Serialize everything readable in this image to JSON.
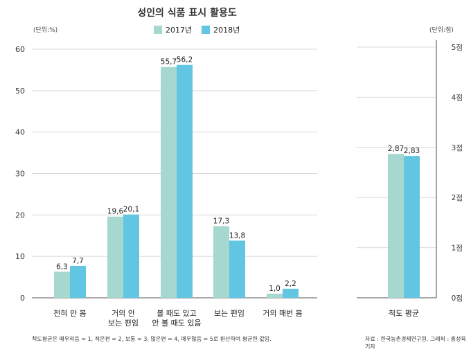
{
  "title": "성인의 식품 표시 활용도",
  "legend": {
    "series_1": "2017년",
    "series_2": "2018년",
    "color_1": "#a6d8d0",
    "color_2": "#62c5e2"
  },
  "left_unit": "(단위:%)",
  "right_unit": "(단위:점)",
  "footnote_left": "척도평균은 매우적음 = 1, 적은편 = 2, 보통 = 3, 많은편 = 4, 매우많음 = 5로 환산하여 평균한 값임.",
  "footnote_right": "자료 : 한국농촌경제연구원, 그래픽 : 홍성육 기자",
  "chart_data": [
    {
      "type": "bar",
      "title": "성인의 식품 표시 활용도",
      "ylabel": "(단위:%)",
      "ylim": [
        0,
        60
      ],
      "yticks": [
        "0",
        "10",
        "20",
        "30",
        "40",
        "50",
        "60"
      ],
      "categories": [
        [
          "전혀 안 봄"
        ],
        [
          "거의 안",
          "보는 편임"
        ],
        [
          "볼 때도 있고",
          "안 볼 때도 있음"
        ],
        [
          "보는 편임"
        ],
        [
          "거의 매번 봄"
        ]
      ],
      "series": [
        {
          "name": "2017년",
          "values": [
            6.3,
            19.6,
            55.7,
            17.3,
            1.0
          ],
          "labels": [
            "6,3",
            "19,6",
            "55,7",
            "17,3",
            "1,0"
          ]
        },
        {
          "name": "2018년",
          "values": [
            7.7,
            20.1,
            56.2,
            13.8,
            2.2
          ],
          "labels": [
            "7,7",
            "20,1",
            "56,2",
            "13,8",
            "2,2"
          ]
        }
      ],
      "grid": true,
      "legend_position": "top-center"
    },
    {
      "type": "bar",
      "ylabel": "(단위:점)",
      "ylim": [
        0,
        5
      ],
      "yticks": [
        "0점",
        "1점",
        "2점",
        "3점",
        "4점",
        "5점"
      ],
      "categories": [
        [
          "척도 평균"
        ]
      ],
      "series": [
        {
          "name": "2017년",
          "values": [
            2.87
          ],
          "labels": [
            "2,87"
          ]
        },
        {
          "name": "2018년",
          "values": [
            2.83
          ],
          "labels": [
            "2,83"
          ]
        }
      ],
      "grid": true,
      "axis_position": "right"
    }
  ]
}
